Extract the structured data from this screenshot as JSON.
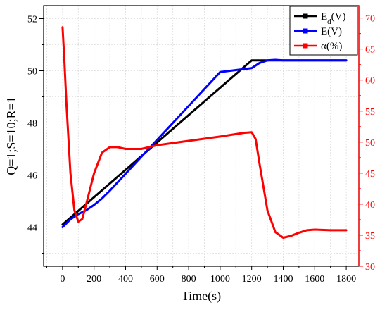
{
  "chart_data": {
    "type": "line",
    "title": "",
    "xlabel": "Time(s)",
    "ylabel_left": "Q=1;S=10;R=1",
    "ylabel_right": "",
    "xlim": [
      -120,
      1880
    ],
    "ylim_left": [
      42.5,
      52.5
    ],
    "ylim_right": [
      30,
      72
    ],
    "x_ticks": [
      0,
      200,
      400,
      600,
      800,
      1000,
      1200,
      1400,
      1600,
      1800
    ],
    "y_left_ticks": [
      44,
      46,
      48,
      50,
      52
    ],
    "y_right_ticks": [
      30,
      35,
      40,
      45,
      50,
      55,
      60,
      65,
      70
    ],
    "grid": true,
    "legend_position": "top-right",
    "series": [
      {
        "name": "Ed(V)",
        "legend_main": "E",
        "legend_sub": "d",
        "legend_unit": "(V)",
        "color": "#000000",
        "axis": "left",
        "x": [
          0,
          1200,
          1800
        ],
        "y": [
          44.1,
          50.4,
          50.4
        ]
      },
      {
        "name": "E(V)",
        "legend_main": "E(V)",
        "color": "#0000ff",
        "axis": "left",
        "x": [
          0,
          50,
          100,
          150,
          200,
          250,
          300,
          400,
          600,
          800,
          1000,
          1200,
          1250,
          1300,
          1350,
          1400,
          1500,
          1800
        ],
        "y": [
          44.0,
          44.3,
          44.5,
          44.65,
          44.85,
          45.1,
          45.4,
          46.05,
          47.35,
          48.65,
          49.95,
          50.1,
          50.3,
          50.4,
          50.42,
          50.4,
          50.4,
          50.4
        ]
      },
      {
        "name": "α(%)",
        "legend_main": "α(%)",
        "color": "#ff0000",
        "axis": "right",
        "x": [
          0,
          10,
          25,
          50,
          75,
          100,
          125,
          150,
          200,
          250,
          300,
          350,
          400,
          500,
          600,
          800,
          1000,
          1150,
          1200,
          1225,
          1250,
          1300,
          1350,
          1400,
          1450,
          1500,
          1550,
          1600,
          1700,
          1800
        ],
        "y": [
          68.5,
          64,
          56,
          45,
          39,
          37.2,
          37.6,
          40,
          45,
          48.3,
          49.2,
          49.2,
          48.9,
          48.9,
          49.5,
          50.2,
          50.9,
          51.5,
          51.6,
          50.5,
          46.5,
          39,
          35.5,
          34.6,
          34.9,
          35.4,
          35.8,
          35.9,
          35.8,
          35.8
        ]
      }
    ]
  }
}
